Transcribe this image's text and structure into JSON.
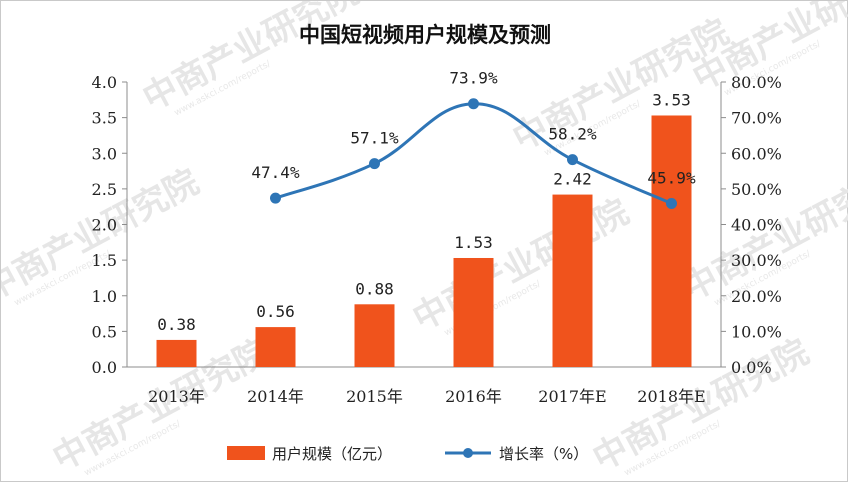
{
  "watermark": {
    "brand": "中商产业研究院",
    "url": "www.askci.com/reports/"
  },
  "chart_data": {
    "type": "bar",
    "title": "中国短视频用户规模及预测",
    "categories": [
      "2013年",
      "2014年",
      "2015年",
      "2016年",
      "2017年E",
      "2018年E"
    ],
    "series": [
      {
        "name": "用户规模（亿元）",
        "kind": "bar",
        "axis": "left",
        "color": "#f0531c",
        "values": [
          0.38,
          0.56,
          0.88,
          1.53,
          2.42,
          3.53
        ],
        "labels": [
          "0.38",
          "0.56",
          "0.88",
          "1.53",
          "2.42",
          "3.53"
        ]
      },
      {
        "name": "增长率（%）",
        "kind": "line",
        "axis": "right",
        "color": "#2e75b6",
        "values": [
          null,
          47.4,
          57.1,
          73.9,
          58.2,
          45.9
        ],
        "labels": [
          "",
          "47.4%",
          "57.1%",
          "73.9%",
          "58.2%",
          "45.9%"
        ]
      }
    ],
    "y_left": {
      "ylim": [
        0,
        4
      ],
      "ticks": [
        "0.0",
        "0.5",
        "1.0",
        "1.5",
        "2.0",
        "2.5",
        "3.0",
        "3.5",
        "4.0"
      ]
    },
    "y_right": {
      "ylim": [
        0,
        80
      ],
      "ticks": [
        "0.0%",
        "10.0%",
        "20.0%",
        "30.0%",
        "40.0%",
        "50.0%",
        "60.0%",
        "70.0%",
        "80.0%"
      ]
    },
    "grid": false,
    "legend_position": "bottom"
  }
}
